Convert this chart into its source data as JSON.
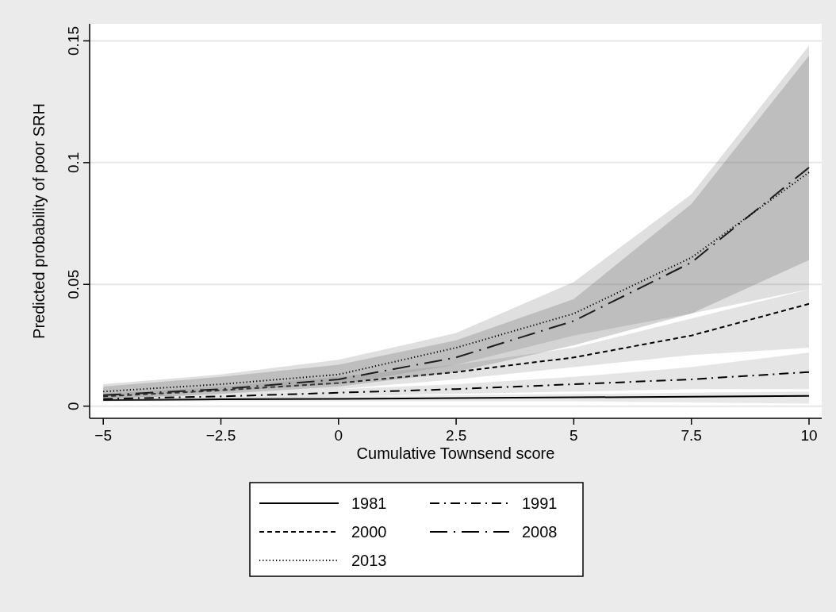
{
  "chart_data": {
    "type": "line",
    "xlabel": "Cumulative Townsend score",
    "ylabel": "Predicted probability of poor SRH",
    "x": [
      -5,
      -2.5,
      0,
      2.5,
      5,
      7.5,
      10
    ],
    "xlim": [
      -5.29,
      10.27
    ],
    "xticks": [
      {
        "value": -5,
        "label": "−5"
      },
      {
        "value": -2.5,
        "label": "−2.5"
      },
      0,
      2.5,
      5,
      7.5,
      10
    ],
    "ylim": [
      -0.005,
      0.157
    ],
    "yticks": [
      0,
      0.05,
      0.1,
      0.15
    ],
    "grid": "y",
    "legend": "bottom",
    "series": [
      {
        "name": "1981",
        "color": "#000000",
        "line_style": "solid",
        "values": [
          0.0025,
          0.0028,
          0.003,
          0.0033,
          0.0036,
          0.0039,
          0.0042
        ],
        "lower": [
          0.002,
          0.002,
          0.002,
          0.002,
          0.002,
          0.0015,
          0.001
        ],
        "upper": [
          0.003,
          0.0035,
          0.004,
          0.0045,
          0.005,
          0.0055,
          0.006
        ]
      },
      {
        "name": "1991",
        "color": "#000000",
        "line_style": "dashdot",
        "values": [
          0.003,
          0.004,
          0.0055,
          0.007,
          0.009,
          0.011,
          0.014
        ],
        "lower": [
          0.002,
          0.003,
          0.004,
          0.005,
          0.006,
          0.007,
          0.007
        ],
        "upper": [
          0.004,
          0.005,
          0.007,
          0.009,
          0.012,
          0.016,
          0.022
        ]
      },
      {
        "name": "2000",
        "color": "#000000",
        "line_style": "dashed",
        "values": [
          0.004,
          0.0065,
          0.0095,
          0.014,
          0.02,
          0.029,
          0.042
        ],
        "lower": [
          0.003,
          0.005,
          0.007,
          0.011,
          0.016,
          0.021,
          0.024
        ],
        "upper": [
          0.005,
          0.008,
          0.012,
          0.017,
          0.024,
          0.036,
          0.048
        ]
      },
      {
        "name": "2008",
        "color": "#000000",
        "line_style": "longdashdot",
        "values": [
          0.0045,
          0.007,
          0.011,
          0.02,
          0.035,
          0.059,
          0.098
        ],
        "lower": [
          0.003,
          0.005,
          0.008,
          0.014,
          0.025,
          0.038,
          0.06
        ],
        "upper": [
          0.008,
          0.012,
          0.017,
          0.027,
          0.044,
          0.083,
          0.144
        ]
      },
      {
        "name": "2013",
        "color": "#000000",
        "line_style": "dotted",
        "values": [
          0.006,
          0.009,
          0.013,
          0.024,
          0.038,
          0.061,
          0.096
        ],
        "lower": [
          0.004,
          0.006,
          0.009,
          0.017,
          0.029,
          0.038,
          0.048
        ],
        "upper": [
          0.009,
          0.013,
          0.019,
          0.03,
          0.051,
          0.087,
          0.148
        ]
      }
    ]
  }
}
